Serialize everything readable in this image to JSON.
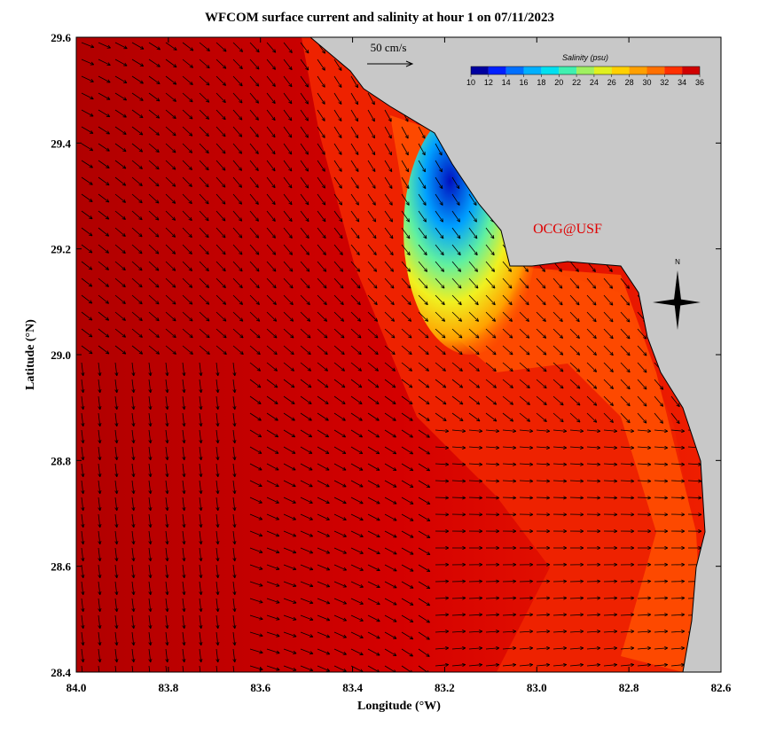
{
  "title": "WFCOM surface current and salinity at hour 1 on 07/11/2023",
  "x_label": "Longitude (°W)",
  "y_label": "Latitude (°N)",
  "xlim": [
    84,
    82.6
  ],
  "ylim": [
    28.4,
    29.6
  ],
  "xticks": [
    {
      "value": 84,
      "label": "84.0"
    },
    83.8,
    83.6,
    83.4,
    83.2,
    {
      "value": 83,
      "label": "83.0"
    },
    82.8,
    82.6
  ],
  "yticks": [
    28.4,
    28.6,
    28.8,
    {
      "value": 29,
      "label": "29.0"
    },
    29.2,
    29.4,
    29.6
  ],
  "scale_label": "50 cm/s",
  "credit": "OCG@USF",
  "north": "N",
  "colorbar": {
    "label": "Salinity (psu)",
    "lim": [
      10,
      36
    ],
    "ticks": [
      10,
      12,
      14,
      16,
      18,
      20,
      22,
      24,
      26,
      28,
      30,
      32,
      34,
      36
    ],
    "colors": [
      "#0000a0",
      "#0020ff",
      "#0070ff",
      "#00b0ff",
      "#00e0f0",
      "#40f0b0",
      "#a0f060",
      "#e0f020",
      "#ffd000",
      "#ffa000",
      "#ff7000",
      "#ff3000",
      "#d00000"
    ]
  }
}
